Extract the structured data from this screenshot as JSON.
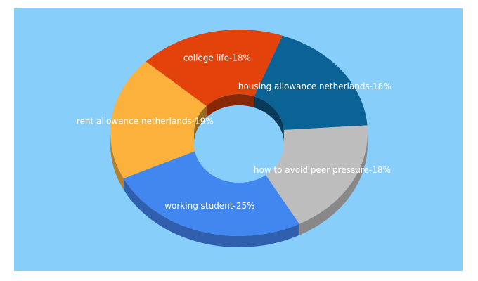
{
  "chart_data": {
    "type": "pie",
    "style": "3d-donut",
    "background": "#87cefa",
    "slices": [
      {
        "label": "working student",
        "value": 25,
        "display": "working student-25%",
        "color": "#4286f0"
      },
      {
        "label": "rent allowance netherlands",
        "value": 19,
        "display": "rent allowance netherlands-19%",
        "color": "#fbb13c"
      },
      {
        "label": "college life",
        "value": 18,
        "display": "college life-18%",
        "color": "#e3420b"
      },
      {
        "label": "housing allowance netherlands",
        "value": 18,
        "display": "housing allowance netherlands-18%",
        "color": "#0b6294"
      },
      {
        "label": "how to avoid peer pressure",
        "value": 18,
        "display": "how to avoid peer pressure-18%",
        "color": "#bdbdbd"
      }
    ]
  }
}
